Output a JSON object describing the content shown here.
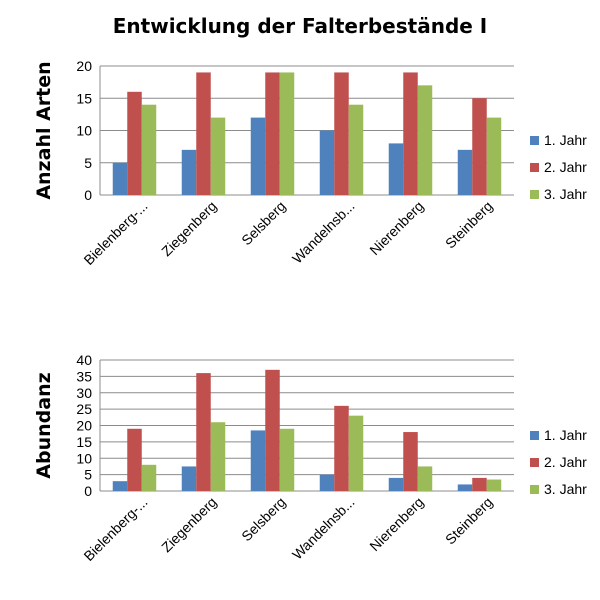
{
  "page": {
    "title": "Entwicklung der Falterbestände I"
  },
  "colors": {
    "series1": "#4F81BD",
    "series2": "#C0504D",
    "series3": "#9BBB59",
    "grid": "#8c8c8c",
    "axis": "#8c8c8c"
  },
  "chart_data": [
    {
      "type": "bar",
      "title": "Entwicklung der Falterbestände I",
      "xlabel": "",
      "ylabel": "Anzahl Arten",
      "ylim": [
        0,
        20
      ],
      "yticks": [
        0,
        5,
        10,
        15,
        20
      ],
      "grid": true,
      "legend": "right",
      "categories": [
        "Bielenberg-...",
        "Ziegenberg",
        "Selsberg",
        "Wandelnsb...",
        "Nierenberg",
        "Steinberg"
      ],
      "series": [
        {
          "name": "1. Jahr",
          "values": [
            5,
            7,
            12,
            10,
            8,
            7
          ]
        },
        {
          "name": "2. Jahr",
          "values": [
            16,
            19,
            19,
            19,
            19,
            15
          ]
        },
        {
          "name": "3. Jahr",
          "values": [
            14,
            12,
            19,
            14,
            17,
            12
          ]
        }
      ]
    },
    {
      "type": "bar",
      "title": "",
      "xlabel": "",
      "ylabel": "Abundanz",
      "ylim": [
        0,
        40
      ],
      "yticks": [
        0,
        5,
        10,
        15,
        20,
        25,
        30,
        35,
        40
      ],
      "grid": true,
      "legend": "right",
      "categories": [
        "Bielenberg-...",
        "Ziegenberg",
        "Selsberg",
        "Wandelnsb...",
        "Nierenberg",
        "Steinberg"
      ],
      "series": [
        {
          "name": "1. Jahr",
          "values": [
            3,
            7.5,
            18.5,
            5,
            4,
            2
          ]
        },
        {
          "name": "2. Jahr",
          "values": [
            19,
            36,
            37,
            26,
            18,
            4
          ]
        },
        {
          "name": "3. Jahr",
          "values": [
            8,
            21,
            19,
            23,
            7.5,
            3.5
          ]
        }
      ]
    }
  ]
}
